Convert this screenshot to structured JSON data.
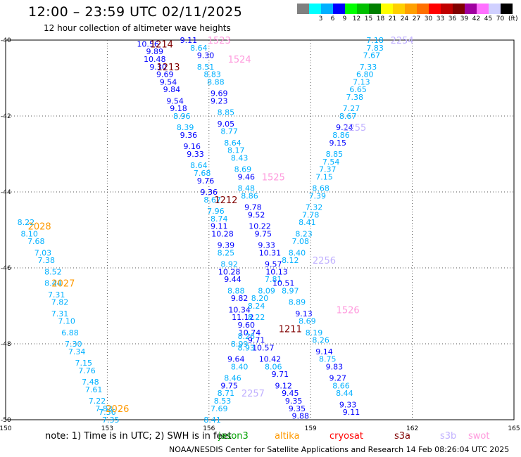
{
  "header": {
    "title": "12:00 – 23:59 UTC 02/11/2025",
    "subtitle": "12 hour collection of altimeter wave heights"
  },
  "scale": {
    "swatches": [
      {
        "label": "",
        "color": "#808080"
      },
      {
        "label": "3",
        "color": "#00ffff"
      },
      {
        "label": "6",
        "color": "#00b0ff"
      },
      {
        "label": "9",
        "color": "#0000ff"
      },
      {
        "label": "12",
        "color": "#00ff00"
      },
      {
        "label": "15",
        "color": "#00c000"
      },
      {
        "label": "18",
        "color": "#008000"
      },
      {
        "label": "21",
        "color": "#ffff00"
      },
      {
        "label": "24",
        "color": "#ffd000"
      },
      {
        "label": "27",
        "color": "#ffa000"
      },
      {
        "label": "30",
        "color": "#ff7000"
      },
      {
        "label": "33",
        "color": "#ff0000"
      },
      {
        "label": "36",
        "color": "#c00000"
      },
      {
        "label": "39",
        "color": "#800000"
      },
      {
        "label": "42",
        "color": "#a000a0"
      },
      {
        "label": "45",
        "color": "#ff70ff"
      },
      {
        "label": "70",
        "color": "#d0d0ff"
      },
      {
        "label": "",
        "color": "#000000"
      }
    ],
    "unit": "(ft)"
  },
  "axes": {
    "x_ticks": [
      "150",
      "153",
      "156",
      "159",
      "162",
      "165"
    ],
    "y_ticks": [
      "-40",
      "-42",
      "-44",
      "-46",
      "-48",
      "-50"
    ]
  },
  "note": "note: 1) Time is in UTC; 2) SWH is in feet",
  "satellites": [
    {
      "name": "jason3",
      "color": "#00a000"
    },
    {
      "name": "altika",
      "color": "#ff9900"
    },
    {
      "name": "cryosat",
      "color": "#ff0000"
    },
    {
      "name": "s3a",
      "color": "#800000"
    },
    {
      "name": "s3b",
      "color": "#c0b0ff"
    },
    {
      "name": "swot",
      "color": "#ff99dd"
    }
  ],
  "credit": "NOAA/NESDIS Center for Satellite Applications and Research    14 Feb 08:26:04 UTC 2025",
  "chart_data": {
    "type": "scatter",
    "title": "12:00 – 23:59 UTC 02/11/2025",
    "xlabel": "",
    "ylabel": "",
    "xlim": [
      150,
      165
    ],
    "ylim": [
      -50,
      -40
    ],
    "grid": true,
    "pass_labels": [
      {
        "text": "1214",
        "lon": 154.6,
        "lat": -40.1,
        "color": "#800000"
      },
      {
        "text": "1523",
        "lon": 156.3,
        "lat": -40.0,
        "color": "#ff99dd"
      },
      {
        "text": "1524",
        "lon": 156.9,
        "lat": -40.5,
        "color": "#ff99dd"
      },
      {
        "text": "1213",
        "lon": 154.8,
        "lat": -40.7,
        "color": "#800000"
      },
      {
        "text": "2254",
        "lon": 161.7,
        "lat": -40.0,
        "color": "#c0b0ff"
      },
      {
        "text": "2255",
        "lon": 160.3,
        "lat": -42.3,
        "color": "#c0b0ff"
      },
      {
        "text": "1525",
        "lon": 157.9,
        "lat": -43.6,
        "color": "#ff99dd"
      },
      {
        "text": "1212",
        "lon": 156.5,
        "lat": -44.2,
        "color": "#800000"
      },
      {
        "text": "2028",
        "lon": 151.0,
        "lat": -44.9,
        "color": "#ff9900"
      },
      {
        "text": "2256",
        "lon": 159.4,
        "lat": -45.8,
        "color": "#c0b0ff"
      },
      {
        "text": "2027",
        "lon": 151.7,
        "lat": -46.4,
        "color": "#ff9900"
      },
      {
        "text": "1526",
        "lon": 160.1,
        "lat": -47.1,
        "color": "#ff99dd"
      },
      {
        "text": "1211",
        "lon": 158.4,
        "lat": -47.6,
        "color": "#800000"
      },
      {
        "text": "2257",
        "lon": 157.3,
        "lat": -49.3,
        "color": "#c0b0ff"
      },
      {
        "text": "2026",
        "lon": 153.3,
        "lat": -49.7,
        "color": "#ff9900"
      }
    ],
    "points": [
      {
        "v": "10.56",
        "lon": 154.2,
        "lat": -40.1,
        "c": "#0000ff"
      },
      {
        "v": "9.11",
        "lon": 155.4,
        "lat": -40.0,
        "c": "#0000ff"
      },
      {
        "v": "9.89",
        "lon": 154.4,
        "lat": -40.3,
        "c": "#0000ff"
      },
      {
        "v": "8.64",
        "lon": 155.7,
        "lat": -40.2,
        "c": "#00b0ff"
      },
      {
        "v": "10.48",
        "lon": 154.4,
        "lat": -40.5,
        "c": "#0000ff"
      },
      {
        "v": "9.30",
        "lon": 155.9,
        "lat": -40.4,
        "c": "#0000ff"
      },
      {
        "v": "9.30",
        "lon": 154.5,
        "lat": -40.7,
        "c": "#0000ff"
      },
      {
        "v": "8.51",
        "lon": 155.9,
        "lat": -40.7,
        "c": "#00b0ff"
      },
      {
        "v": "9.69",
        "lon": 154.7,
        "lat": -40.9,
        "c": "#0000ff"
      },
      {
        "v": "8.83",
        "lon": 156.1,
        "lat": -40.9,
        "c": "#00b0ff"
      },
      {
        "v": "9.54",
        "lon": 154.8,
        "lat": -41.1,
        "c": "#0000ff"
      },
      {
        "v": "8.88",
        "lon": 156.2,
        "lat": -41.1,
        "c": "#00b0ff"
      },
      {
        "v": "9.84",
        "lon": 154.9,
        "lat": -41.3,
        "c": "#0000ff"
      },
      {
        "v": "9.69",
        "lon": 156.3,
        "lat": -41.4,
        "c": "#0000ff"
      },
      {
        "v": "9.54",
        "lon": 155.0,
        "lat": -41.6,
        "c": "#0000ff"
      },
      {
        "v": "9.23",
        "lon": 156.3,
        "lat": -41.6,
        "c": "#0000ff"
      },
      {
        "v": "9.18",
        "lon": 155.1,
        "lat": -41.8,
        "c": "#0000ff"
      },
      {
        "v": "8.85",
        "lon": 156.5,
        "lat": -41.9,
        "c": "#00b0ff"
      },
      {
        "v": "8.96",
        "lon": 155.2,
        "lat": -42.0,
        "c": "#00b0ff"
      },
      {
        "v": "9.05",
        "lon": 156.5,
        "lat": -42.2,
        "c": "#0000ff"
      },
      {
        "v": "8.39",
        "lon": 155.3,
        "lat": -42.3,
        "c": "#00b0ff"
      },
      {
        "v": "8.77",
        "lon": 156.6,
        "lat": -42.4,
        "c": "#00b0ff"
      },
      {
        "v": "9.36",
        "lon": 155.4,
        "lat": -42.5,
        "c": "#0000ff"
      },
      {
        "v": "8.64",
        "lon": 156.7,
        "lat": -42.7,
        "c": "#00b0ff"
      },
      {
        "v": "9.16",
        "lon": 155.5,
        "lat": -42.8,
        "c": "#0000ff"
      },
      {
        "v": "8.17",
        "lon": 156.8,
        "lat": -42.9,
        "c": "#00b0ff"
      },
      {
        "v": "9.33",
        "lon": 155.6,
        "lat": -43.0,
        "c": "#0000ff"
      },
      {
        "v": "8.43",
        "lon": 156.9,
        "lat": -43.1,
        "c": "#00b0ff"
      },
      {
        "v": "8.64",
        "lon": 155.7,
        "lat": -43.3,
        "c": "#00b0ff"
      },
      {
        "v": "8.69",
        "lon": 157.0,
        "lat": -43.4,
        "c": "#00b0ff"
      },
      {
        "v": "7.68",
        "lon": 155.8,
        "lat": -43.5,
        "c": "#00b0ff"
      },
      {
        "v": "9.46",
        "lon": 157.1,
        "lat": -43.6,
        "c": "#0000ff"
      },
      {
        "v": "9.76",
        "lon": 155.9,
        "lat": -43.7,
        "c": "#0000ff"
      },
      {
        "v": "8.48",
        "lon": 157.1,
        "lat": -43.9,
        "c": "#00b0ff"
      },
      {
        "v": "9.36",
        "lon": 156.0,
        "lat": -44.0,
        "c": "#0000ff"
      },
      {
        "v": "8.86",
        "lon": 157.2,
        "lat": -44.1,
        "c": "#00b0ff"
      },
      {
        "v": "8.67",
        "lon": 156.1,
        "lat": -44.2,
        "c": "#00b0ff"
      },
      {
        "v": "9.78",
        "lon": 157.3,
        "lat": -44.4,
        "c": "#0000ff"
      },
      {
        "v": "7.96",
        "lon": 156.2,
        "lat": -44.5,
        "c": "#00b0ff"
      },
      {
        "v": "9.52",
        "lon": 157.4,
        "lat": -44.6,
        "c": "#0000ff"
      },
      {
        "v": "8.74",
        "lon": 156.3,
        "lat": -44.7,
        "c": "#00b0ff"
      },
      {
        "v": "10.22",
        "lon": 157.5,
        "lat": -44.9,
        "c": "#0000ff"
      },
      {
        "v": "9.11",
        "lon": 156.3,
        "lat": -44.9,
        "c": "#0000ff"
      },
      {
        "v": "9.75",
        "lon": 157.6,
        "lat": -45.1,
        "c": "#0000ff"
      },
      {
        "v": "10.28",
        "lon": 156.4,
        "lat": -45.1,
        "c": "#0000ff"
      },
      {
        "v": "9.33",
        "lon": 157.7,
        "lat": -45.4,
        "c": "#0000ff"
      },
      {
        "v": "9.39",
        "lon": 156.5,
        "lat": -45.4,
        "c": "#0000ff"
      },
      {
        "v": "10.31",
        "lon": 157.8,
        "lat": -45.6,
        "c": "#0000ff"
      },
      {
        "v": "8.25",
        "lon": 156.5,
        "lat": -45.6,
        "c": "#00b0ff"
      },
      {
        "v": "8.92",
        "lon": 156.6,
        "lat": -45.9,
        "c": "#00b0ff"
      },
      {
        "v": "9.57",
        "lon": 157.9,
        "lat": -45.9,
        "c": "#0000ff"
      },
      {
        "v": "10.28",
        "lon": 156.6,
        "lat": -46.1,
        "c": "#0000ff"
      },
      {
        "v": "10.13",
        "lon": 158.0,
        "lat": -46.1,
        "c": "#0000ff"
      },
      {
        "v": "9.44",
        "lon": 156.7,
        "lat": -46.3,
        "c": "#0000ff"
      },
      {
        "v": "7.81",
        "lon": 157.9,
        "lat": -46.3,
        "c": "#00b0ff"
      },
      {
        "v": "10.51",
        "lon": 158.2,
        "lat": -46.4,
        "c": "#0000ff"
      },
      {
        "v": "8.88",
        "lon": 156.8,
        "lat": -46.6,
        "c": "#00b0ff"
      },
      {
        "v": "8.09",
        "lon": 157.7,
        "lat": -46.6,
        "c": "#00b0ff"
      },
      {
        "v": "8.97",
        "lon": 158.4,
        "lat": -46.6,
        "c": "#00b0ff"
      },
      {
        "v": "9.82",
        "lon": 156.9,
        "lat": -46.8,
        "c": "#0000ff"
      },
      {
        "v": "8.20",
        "lon": 157.5,
        "lat": -46.8,
        "c": "#00b0ff"
      },
      {
        "v": "8.89",
        "lon": 158.6,
        "lat": -46.9,
        "c": "#00b0ff"
      },
      {
        "v": "10.34",
        "lon": 156.9,
        "lat": -47.1,
        "c": "#0000ff"
      },
      {
        "v": "8.24",
        "lon": 157.4,
        "lat": -47.0,
        "c": "#00b0ff"
      },
      {
        "v": "9.13",
        "lon": 158.8,
        "lat": -47.2,
        "c": "#0000ff"
      },
      {
        "v": "11.12",
        "lon": 157.0,
        "lat": -47.3,
        "c": "#0000ff"
      },
      {
        "v": "8.22",
        "lon": 157.4,
        "lat": -47.3,
        "c": "#00b0ff"
      },
      {
        "v": "8.69",
        "lon": 158.9,
        "lat": -47.4,
        "c": "#00b0ff"
      },
      {
        "v": "9.60",
        "lon": 157.1,
        "lat": -47.5,
        "c": "#0000ff"
      },
      {
        "v": "10.74",
        "lon": 157.2,
        "lat": -47.7,
        "c": "#0000ff"
      },
      {
        "v": "8.19",
        "lon": 159.1,
        "lat": -47.7,
        "c": "#00b0ff"
      },
      {
        "v": "8.26",
        "lon": 157.1,
        "lat": -47.8,
        "c": "#00b0ff"
      },
      {
        "v": "9.71",
        "lon": 157.4,
        "lat": -47.9,
        "c": "#0000ff"
      },
      {
        "v": "8.26",
        "lon": 159.3,
        "lat": -47.9,
        "c": "#00b0ff"
      },
      {
        "v": "8.99",
        "lon": 156.9,
        "lat": -48.0,
        "c": "#00b0ff"
      },
      {
        "v": "10.57",
        "lon": 157.6,
        "lat": -48.1,
        "c": "#0000ff"
      },
      {
        "v": "8.93",
        "lon": 157.1,
        "lat": -48.1,
        "c": "#00b0ff"
      },
      {
        "v": "9.14",
        "lon": 159.4,
        "lat": -48.2,
        "c": "#0000ff"
      },
      {
        "v": "9.64",
        "lon": 156.8,
        "lat": -48.4,
        "c": "#0000ff"
      },
      {
        "v": "10.42",
        "lon": 157.8,
        "lat": -48.4,
        "c": "#0000ff"
      },
      {
        "v": "8.75",
        "lon": 159.5,
        "lat": -48.4,
        "c": "#00b0ff"
      },
      {
        "v": "8.40",
        "lon": 156.9,
        "lat": -48.6,
        "c": "#00b0ff"
      },
      {
        "v": "8.06",
        "lon": 157.9,
        "lat": -48.6,
        "c": "#00b0ff"
      },
      {
        "v": "9.83",
        "lon": 159.7,
        "lat": -48.6,
        "c": "#0000ff"
      },
      {
        "v": "8.46",
        "lon": 156.7,
        "lat": -48.9,
        "c": "#00b0ff"
      },
      {
        "v": "9.71",
        "lon": 158.1,
        "lat": -48.8,
        "c": "#0000ff"
      },
      {
        "v": "9.27",
        "lon": 159.8,
        "lat": -48.9,
        "c": "#0000ff"
      },
      {
        "v": "9.75",
        "lon": 156.6,
        "lat": -49.1,
        "c": "#0000ff"
      },
      {
        "v": "9.12",
        "lon": 158.2,
        "lat": -49.1,
        "c": "#0000ff"
      },
      {
        "v": "8.66",
        "lon": 159.9,
        "lat": -49.1,
        "c": "#00b0ff"
      },
      {
        "v": "8.71",
        "lon": 156.5,
        "lat": -49.3,
        "c": "#00b0ff"
      },
      {
        "v": "9.45",
        "lon": 158.4,
        "lat": -49.3,
        "c": "#0000ff"
      },
      {
        "v": "8.44",
        "lon": 160.0,
        "lat": -49.3,
        "c": "#00b0ff"
      },
      {
        "v": "8.53",
        "lon": 156.4,
        "lat": -49.5,
        "c": "#00b0ff"
      },
      {
        "v": "9.35",
        "lon": 158.5,
        "lat": -49.5,
        "c": "#0000ff"
      },
      {
        "v": "9.33",
        "lon": 160.1,
        "lat": -49.6,
        "c": "#0000ff"
      },
      {
        "v": "7.69",
        "lon": 156.3,
        "lat": -49.7,
        "c": "#00b0ff"
      },
      {
        "v": "9.35",
        "lon": 158.6,
        "lat": -49.7,
        "c": "#0000ff"
      },
      {
        "v": "9.11",
        "lon": 160.2,
        "lat": -49.8,
        "c": "#0000ff"
      },
      {
        "v": "8.41",
        "lon": 156.1,
        "lat": -50.0,
        "c": "#00b0ff"
      },
      {
        "v": "9.88",
        "lon": 158.7,
        "lat": -49.9,
        "c": "#0000ff"
      },
      {
        "v": "7.18",
        "lon": 160.9,
        "lat": -40.0,
        "c": "#00b0ff"
      },
      {
        "v": "7.83",
        "lon": 160.9,
        "lat": -40.2,
        "c": "#00b0ff"
      },
      {
        "v": "7.67",
        "lon": 160.8,
        "lat": -40.4,
        "c": "#00b0ff"
      },
      {
        "v": "7.33",
        "lon": 160.7,
        "lat": -40.7,
        "c": "#00b0ff"
      },
      {
        "v": "6.80",
        "lon": 160.6,
        "lat": -40.9,
        "c": "#00b0ff"
      },
      {
        "v": "7.13",
        "lon": 160.5,
        "lat": -41.1,
        "c": "#00b0ff"
      },
      {
        "v": "6.65",
        "lon": 160.4,
        "lat": -41.3,
        "c": "#00b0ff"
      },
      {
        "v": "7.38",
        "lon": 160.3,
        "lat": -41.5,
        "c": "#00b0ff"
      },
      {
        "v": "7.27",
        "lon": 160.2,
        "lat": -41.8,
        "c": "#00b0ff"
      },
      {
        "v": "8.67",
        "lon": 160.1,
        "lat": -42.0,
        "c": "#00b0ff"
      },
      {
        "v": "9.24",
        "lon": 160.0,
        "lat": -42.3,
        "c": "#0000ff"
      },
      {
        "v": "8.86",
        "lon": 159.9,
        "lat": -42.5,
        "c": "#00b0ff"
      },
      {
        "v": "9.15",
        "lon": 159.8,
        "lat": -42.7,
        "c": "#0000ff"
      },
      {
        "v": "8.85",
        "lon": 159.7,
        "lat": -43.0,
        "c": "#00b0ff"
      },
      {
        "v": "7.54",
        "lon": 159.6,
        "lat": -43.2,
        "c": "#00b0ff"
      },
      {
        "v": "7.37",
        "lon": 159.5,
        "lat": -43.4,
        "c": "#00b0ff"
      },
      {
        "v": "7.15",
        "lon": 159.4,
        "lat": -43.6,
        "c": "#00b0ff"
      },
      {
        "v": "8.68",
        "lon": 159.3,
        "lat": -43.9,
        "c": "#00b0ff"
      },
      {
        "v": "7.39",
        "lon": 159.2,
        "lat": -44.1,
        "c": "#00b0ff"
      },
      {
        "v": "7.32",
        "lon": 159.1,
        "lat": -44.4,
        "c": "#00b0ff"
      },
      {
        "v": "7.78",
        "lon": 159.0,
        "lat": -44.6,
        "c": "#00b0ff"
      },
      {
        "v": "8.41",
        "lon": 158.9,
        "lat": -44.8,
        "c": "#00b0ff"
      },
      {
        "v": "8.23",
        "lon": 158.8,
        "lat": -45.1,
        "c": "#00b0ff"
      },
      {
        "v": "7.08",
        "lon": 158.7,
        "lat": -45.3,
        "c": "#00b0ff"
      },
      {
        "v": "8.40",
        "lon": 158.6,
        "lat": -45.6,
        "c": "#00b0ff"
      },
      {
        "v": "8.12",
        "lon": 158.4,
        "lat": -45.8,
        "c": "#00b0ff"
      },
      {
        "v": "8.22",
        "lon": 150.6,
        "lat": -44.8,
        "c": "#00b0ff"
      },
      {
        "v": "8.10",
        "lon": 150.7,
        "lat": -45.1,
        "c": "#00b0ff"
      },
      {
        "v": "7.68",
        "lon": 150.9,
        "lat": -45.3,
        "c": "#00b0ff"
      },
      {
        "v": "7.03",
        "lon": 151.1,
        "lat": -45.6,
        "c": "#00b0ff"
      },
      {
        "v": "7.38",
        "lon": 151.2,
        "lat": -45.8,
        "c": "#00b0ff"
      },
      {
        "v": "8.52",
        "lon": 151.4,
        "lat": -46.1,
        "c": "#00b0ff"
      },
      {
        "v": "8.44",
        "lon": 151.4,
        "lat": -46.4,
        "c": "#00b0ff"
      },
      {
        "v": "7.31",
        "lon": 151.5,
        "lat": -46.7,
        "c": "#00b0ff"
      },
      {
        "v": "7.82",
        "lon": 151.6,
        "lat": -46.9,
        "c": "#00b0ff"
      },
      {
        "v": "7.31",
        "lon": 151.6,
        "lat": -47.2,
        "c": "#00b0ff"
      },
      {
        "v": "7.10",
        "lon": 151.8,
        "lat": -47.4,
        "c": "#00b0ff"
      },
      {
        "v": "6.88",
        "lon": 151.9,
        "lat": -47.7,
        "c": "#00b0ff"
      },
      {
        "v": "7.30",
        "lon": 152.0,
        "lat": -48.0,
        "c": "#00b0ff"
      },
      {
        "v": "7.34",
        "lon": 152.1,
        "lat": -48.2,
        "c": "#00b0ff"
      },
      {
        "v": "7.15",
        "lon": 152.3,
        "lat": -48.5,
        "c": "#00b0ff"
      },
      {
        "v": "7.76",
        "lon": 152.4,
        "lat": -48.7,
        "c": "#00b0ff"
      },
      {
        "v": "7.48",
        "lon": 152.5,
        "lat": -49.0,
        "c": "#00b0ff"
      },
      {
        "v": "7.61",
        "lon": 152.6,
        "lat": -49.2,
        "c": "#00b0ff"
      },
      {
        "v": "7.22",
        "lon": 152.7,
        "lat": -49.5,
        "c": "#00b0ff"
      },
      {
        "v": "7.83",
        "lon": 152.9,
        "lat": -49.7,
        "c": "#00b0ff"
      },
      {
        "v": "7.36",
        "lon": 153.0,
        "lat": -49.8,
        "c": "#00b0ff"
      },
      {
        "v": "7.35",
        "lon": 153.1,
        "lat": -50.0,
        "c": "#00b0ff"
      }
    ]
  }
}
